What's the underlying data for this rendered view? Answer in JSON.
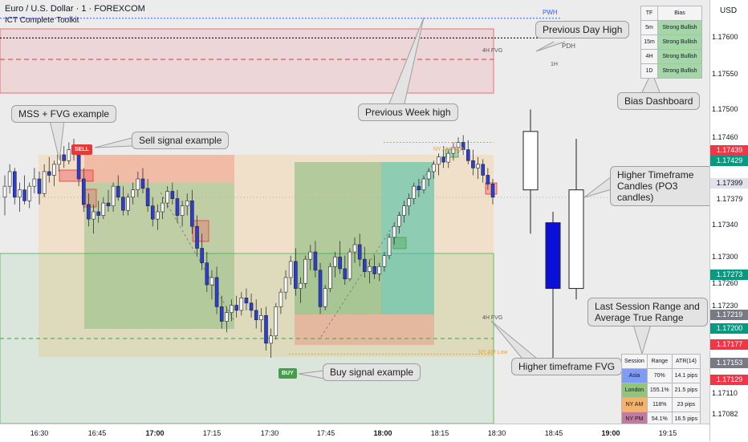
{
  "header": {
    "title": "Euro / U.S. Dollar · 1 · FOREXCOM",
    "indicator": "ICT Complete Toolkit"
  },
  "currency_button": "USD",
  "chart_labels": {
    "pwh": "PWH",
    "pdh": "PDH",
    "fvg_4h_top": "4H FVG",
    "tf_1h": "1H",
    "fvg_4h_bottom": "4H FVG",
    "ny_am_high": "NY AM High",
    "ny_am_low": "NY AM Low"
  },
  "signals": {
    "sell": "SELL",
    "buy": "BUY"
  },
  "callouts": {
    "previous_day_high": "Previous Day High",
    "previous_week_high": "Previous Week high",
    "mss_fvg": "MSS + FVG example",
    "sell_signal": "Sell signal example",
    "bias_dashboard": "Bias Dashboard",
    "htf_candles": "Higher Timeframe Candles (PO3 candles)",
    "session_range": "Last Session Range and Average True Range",
    "htf_fvg": "Higher timeframe FVG",
    "buy_signal": "Buy signal example"
  },
  "bias_table": {
    "headers": [
      "TF",
      "Bias"
    ],
    "rows": [
      {
        "tf": "5m",
        "bias": "Strong Bullish"
      },
      {
        "tf": "15m",
        "bias": "Strong Bullish"
      },
      {
        "tf": "4H",
        "bias": "Strong Bullish"
      },
      {
        "tf": "1D",
        "bias": "Strong Bullish"
      }
    ]
  },
  "session_table": {
    "headers": [
      "Session",
      "Range",
      "ATR(14)"
    ],
    "rows": [
      {
        "session": "Asia",
        "range": "70%",
        "atr": "14.1 pips",
        "color": "#7f9cf5"
      },
      {
        "session": "London",
        "range": "155.1%",
        "atr": "21.5 pips",
        "color": "#93c47d"
      },
      {
        "session": "NY AM",
        "range": "118%",
        "atr": "23 pips",
        "color": "#f6b26b"
      },
      {
        "session": "NY PM",
        "range": "54.1%",
        "atr": "16.5 pips",
        "color": "#c27ba0"
      }
    ]
  },
  "price_axis": {
    "labels": [
      "1.17600",
      "1.17550",
      "1.17500",
      "1.17460",
      "1.17340",
      "1.17300",
      "1.17260",
      "1.17230",
      "1.17110",
      "1.17082"
    ],
    "tags": [
      {
        "text": "1.17439",
        "color": "#f23645"
      },
      {
        "text": "1.17429",
        "color": "#089981"
      },
      {
        "text": "1.17399",
        "color": "#e0e3eb"
      },
      {
        "text": "1.17379",
        "color": "#ffffff"
      },
      {
        "text": "1.17273",
        "color": "#089981"
      },
      {
        "text": "1.17219",
        "color": "#787b86"
      },
      {
        "text": "1.17200",
        "color": "#089981"
      },
      {
        "text": "1.17177",
        "color": "#f23645"
      },
      {
        "text": "1.17153",
        "color": "#787b86"
      },
      {
        "text": "1.17129",
        "color": "#f23645"
      }
    ]
  },
  "time_axis": {
    "labels": [
      {
        "text": "16:30",
        "bold": false
      },
      {
        "text": "16:45",
        "bold": false
      },
      {
        "text": "17:00",
        "bold": true
      },
      {
        "text": "17:15",
        "bold": false
      },
      {
        "text": "17:30",
        "bold": false
      },
      {
        "text": "17:45",
        "bold": false
      },
      {
        "text": "18:00",
        "bold": true
      },
      {
        "text": "18:15",
        "bold": false
      },
      {
        "text": "18:30",
        "bold": false
      },
      {
        "text": "18:45",
        "bold": false
      },
      {
        "text": "19:00",
        "bold": true
      },
      {
        "text": "19:15",
        "bold": false
      }
    ]
  },
  "chart_data": {
    "type": "candlestick",
    "symbol": "EURUSD",
    "timeframe": "1",
    "x_range": [
      "16:20",
      "19:25"
    ],
    "y_range": [
      1.1707,
      1.1765
    ],
    "ohlc": [
      [
        1.1738,
        1.1741,
        1.17355,
        1.17395
      ],
      [
        1.17395,
        1.17425,
        1.17385,
        1.17415
      ],
      [
        1.17415,
        1.1742,
        1.1737,
        1.1738
      ],
      [
        1.1738,
        1.174,
        1.1736,
        1.1739
      ],
      [
        1.1739,
        1.1741,
        1.1737,
        1.17375
      ],
      [
        1.17375,
        1.174,
        1.17365,
        1.17395
      ],
      [
        1.17395,
        1.1742,
        1.17385,
        1.17405
      ],
      [
        1.17405,
        1.17415,
        1.1737,
        1.17385
      ],
      [
        1.17385,
        1.17425,
        1.1738,
        1.17415
      ],
      [
        1.17415,
        1.17435,
        1.174,
        1.1741
      ],
      [
        1.1741,
        1.1743,
        1.17395,
        1.17425
      ],
      [
        1.17425,
        1.17445,
        1.17415,
        1.17438
      ],
      [
        1.17438,
        1.1745,
        1.1742,
        1.1743
      ],
      [
        1.1743,
        1.17455,
        1.17425,
        1.17445
      ],
      [
        1.17445,
        1.1746,
        1.1743,
        1.1744
      ],
      [
        1.1744,
        1.17445,
        1.17395,
        1.17405
      ],
      [
        1.17405,
        1.1742,
        1.1736,
        1.1737
      ],
      [
        1.1737,
        1.17385,
        1.1734,
        1.1735
      ],
      [
        1.1735,
        1.1737,
        1.1733,
        1.1736
      ],
      [
        1.1736,
        1.17375,
        1.17345,
        1.17355
      ],
      [
        1.17355,
        1.1738,
        1.1735,
        1.17372
      ],
      [
        1.17372,
        1.1739,
        1.1736,
        1.17368
      ],
      [
        1.17368,
        1.174,
        1.1736,
        1.17395
      ],
      [
        1.17395,
        1.1741,
        1.17375,
        1.1738
      ],
      [
        1.1738,
        1.17395,
        1.17355,
        1.17362
      ],
      [
        1.17362,
        1.17385,
        1.17355,
        1.1738
      ],
      [
        1.1738,
        1.174,
        1.1737,
        1.1739
      ],
      [
        1.1739,
        1.17415,
        1.1738,
        1.17405
      ],
      [
        1.17405,
        1.1742,
        1.17385,
        1.17392
      ],
      [
        1.17392,
        1.17405,
        1.1736,
        1.17368
      ],
      [
        1.17368,
        1.1738,
        1.1734,
        1.1735
      ],
      [
        1.1735,
        1.1737,
        1.17335,
        1.1736
      ],
      [
        1.1736,
        1.1738,
        1.1735,
        1.17372
      ],
      [
        1.17372,
        1.17395,
        1.17365,
        1.17388
      ],
      [
        1.17388,
        1.174,
        1.1737,
        1.17378
      ],
      [
        1.17378,
        1.1739,
        1.17345,
        1.17355
      ],
      [
        1.17355,
        1.17375,
        1.1734,
        1.17368
      ],
      [
        1.17368,
        1.17385,
        1.17355,
        1.17375
      ],
      [
        1.17375,
        1.1739,
        1.1733,
        1.1734
      ],
      [
        1.1734,
        1.17355,
        1.173,
        1.1731
      ],
      [
        1.1731,
        1.1733,
        1.1728,
        1.1729
      ],
      [
        1.1729,
        1.17305,
        1.1725,
        1.1726
      ],
      [
        1.1726,
        1.1728,
        1.1724,
        1.1727
      ],
      [
        1.1727,
        1.17285,
        1.1722,
        1.1723
      ],
      [
        1.1723,
        1.17245,
        1.172,
        1.1721
      ],
      [
        1.1721,
        1.1723,
        1.17195,
        1.17222
      ],
      [
        1.17222,
        1.1724,
        1.1721,
        1.17232
      ],
      [
        1.17232,
        1.17245,
        1.17215,
        1.17225
      ],
      [
        1.17225,
        1.1725,
        1.17218,
        1.17242
      ],
      [
        1.17242,
        1.17255,
        1.17225,
        1.17235
      ],
      [
        1.17235,
        1.17248,
        1.17215,
        1.17225
      ],
      [
        1.17225,
        1.1724,
        1.172,
        1.17212
      ],
      [
        1.17212,
        1.17228,
        1.17195,
        1.17218
      ],
      [
        1.17218,
        1.1723,
        1.1717,
        1.1718
      ],
      [
        1.1718,
        1.172,
        1.1716,
        1.1719
      ],
      [
        1.1719,
        1.17235,
        1.17185,
        1.1723
      ],
      [
        1.1723,
        1.17255,
        1.1722,
        1.1725
      ],
      [
        1.1725,
        1.1728,
        1.1724,
        1.1727
      ],
      [
        1.1727,
        1.173,
        1.1726,
        1.17292
      ],
      [
        1.17292,
        1.1731,
        1.17245,
        1.17255
      ],
      [
        1.17255,
        1.1727,
        1.17235,
        1.17262
      ],
      [
        1.17262,
        1.173,
        1.17255,
        1.17295
      ],
      [
        1.17295,
        1.17315,
        1.1728,
        1.17305
      ],
      [
        1.17305,
        1.1732,
        1.1727,
        1.1728
      ],
      [
        1.1728,
        1.1729,
        1.1722,
        1.1723
      ],
      [
        1.1723,
        1.1726,
        1.17225,
        1.17255
      ],
      [
        1.17255,
        1.1729,
        1.1725,
        1.17285
      ],
      [
        1.17285,
        1.17305,
        1.1727,
        1.17298
      ],
      [
        1.17298,
        1.1732,
        1.17275,
        1.17282
      ],
      [
        1.17282,
        1.173,
        1.1726,
        1.17268
      ],
      [
        1.17268,
        1.1731,
        1.17265,
        1.17305
      ],
      [
        1.17305,
        1.17325,
        1.1729,
        1.17315
      ],
      [
        1.17315,
        1.1733,
        1.17285,
        1.17295
      ],
      [
        1.17295,
        1.17312,
        1.1727,
        1.17278
      ],
      [
        1.17278,
        1.17295,
        1.17262,
        1.17285
      ],
      [
        1.17285,
        1.173,
        1.17268,
        1.17275
      ],
      [
        1.17275,
        1.1729,
        1.17265,
        1.17285
      ],
      [
        1.17285,
        1.17305,
        1.17278,
        1.173
      ],
      [
        1.173,
        1.1733,
        1.17295,
        1.17325
      ],
      [
        1.17325,
        1.17345,
        1.17315,
        1.1734
      ],
      [
        1.1734,
        1.1736,
        1.1733,
        1.17355
      ],
      [
        1.17355,
        1.17375,
        1.17345,
        1.17368
      ],
      [
        1.17368,
        1.17385,
        1.17355,
        1.17378
      ],
      [
        1.17378,
        1.174,
        1.1737,
        1.17395
      ],
      [
        1.17395,
        1.17405,
        1.1738,
        1.1739
      ],
      [
        1.1739,
        1.1741,
        1.17385,
        1.17405
      ],
      [
        1.17405,
        1.1742,
        1.17395,
        1.17415
      ],
      [
        1.17415,
        1.1743,
        1.17405,
        1.17425
      ],
      [
        1.17425,
        1.1744,
        1.1741,
        1.17435
      ],
      [
        1.17435,
        1.1745,
        1.1742,
        1.17428
      ],
      [
        1.17428,
        1.17445,
        1.1742,
        1.1744
      ],
      [
        1.1744,
        1.17455,
        1.1743,
        1.17448
      ],
      [
        1.17448,
        1.17462,
        1.1744,
        1.17455
      ],
      [
        1.17455,
        1.17465,
        1.17438,
        1.17445
      ],
      [
        1.17445,
        1.17458,
        1.17425,
        1.1743
      ],
      [
        1.1743,
        1.17445,
        1.1741,
        1.1742
      ],
      [
        1.1742,
        1.17435,
        1.17405,
        1.17425
      ],
      [
        1.17425,
        1.17432,
        1.174,
        1.1741
      ],
      [
        1.1741,
        1.1742,
        1.1739,
        1.17398
      ],
      [
        1.17398,
        1.17405,
        1.1737,
        1.1738
      ]
    ],
    "htf_candles": [
      {
        "open": 1.1739,
        "high": 1.175,
        "low": 1.1733,
        "close": 1.1747
      },
      {
        "open": 1.17345,
        "high": 1.1736,
        "low": 1.1715,
        "close": 1.17255
      },
      {
        "open": 1.17255,
        "high": 1.1746,
        "low": 1.1724,
        "close": 1.1739
      }
    ],
    "levels": {
      "pwh": 1.17625,
      "pdh": 1.17598,
      "ny_am_high": 1.17455,
      "ny_am_low": 1.17165
    }
  }
}
